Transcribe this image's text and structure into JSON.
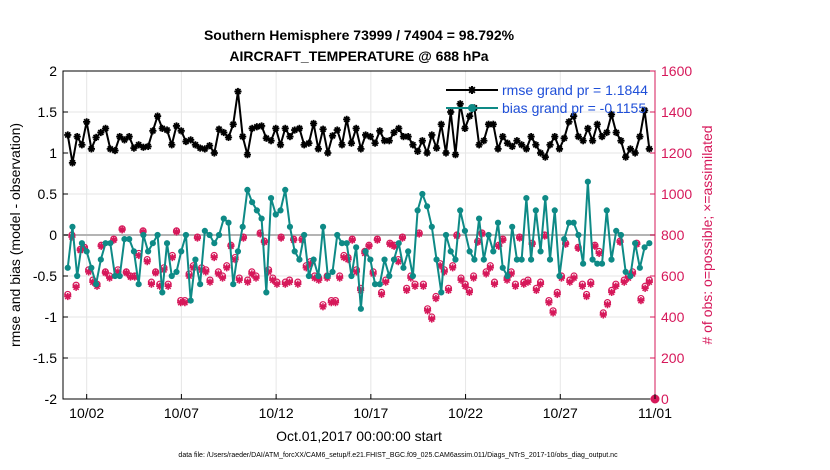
{
  "chart_data": {
    "type": "line",
    "title_line1": "Southern Hemisphere 73999 / 74904 = 98.792%",
    "title_line2": "AIRCRAFT_TEMPERATURE @ 688 hPa",
    "xlabel": "Oct.01,2017 00:00:00 start",
    "ylabel_left": "rmse and bias (model - observation)",
    "ylabel_right": "# of obs: o=possible; ×=assimilated",
    "footer": "data file: /Users/raeder/DAI/ATM_forcXX/CAM6_setup/f.e21.FHIST_BGC.f09_025.CAM6assim.011/Diags_NTrS_2017-10/obs_diag_output.nc",
    "x_ticks": [
      {
        "day": 2,
        "label": "10/02"
      },
      {
        "day": 7,
        "label": "10/07"
      },
      {
        "day": 12,
        "label": "10/12"
      },
      {
        "day": 17,
        "label": "10/17"
      },
      {
        "day": 22,
        "label": "10/22"
      },
      {
        "day": 27,
        "label": "10/27"
      },
      {
        "day": 32,
        "label": "11/01"
      }
    ],
    "xlim_days": [
      0.75,
      32.0
    ],
    "ylim_left": [
      -2,
      2
    ],
    "yticks_left": [
      "2",
      "1.5",
      "1",
      "0.5",
      "0",
      "-0.5",
      "-1",
      "-1.5",
      "-2"
    ],
    "ylim_right": [
      0,
      1600
    ],
    "yticks_right": [
      "1600",
      "1400",
      "1200",
      "1000",
      "800",
      "600",
      "400",
      "200",
      "0"
    ],
    "grid": true,
    "legend_position": "top-right",
    "colors": {
      "rmse": "#000000",
      "bias": "#0e8a86",
      "obs": "#d6185a",
      "zero": "#b4b4b4",
      "legend_text": "#1f4fd8"
    },
    "series": [
      {
        "name": "rmse grand pr = 1.1844",
        "axis": "left",
        "values": [
          1.22,
          0.88,
          1.2,
          1.1,
          1.38,
          1.05,
          1.19,
          1.25,
          1.3,
          1.05,
          1.03,
          1.2,
          1.16,
          1.2,
          1.06,
          1.1,
          1.07,
          1.08,
          1.27,
          1.45,
          1.3,
          1.28,
          1.1,
          1.33,
          1.27,
          1.14,
          1.16,
          1.1,
          1.06,
          1.05,
          1.09,
          1.0,
          1.29,
          1.25,
          1.19,
          1.35,
          1.75,
          1.2,
          0.98,
          1.3,
          1.32,
          1.33,
          1.18,
          1.15,
          1.3,
          1.1,
          1.3,
          1.2,
          1.28,
          1.3,
          1.1,
          1.12,
          1.36,
          1.05,
          1.29,
          1.0,
          1.21,
          1.28,
          1.1,
          1.41,
          1.12,
          1.3,
          1.05,
          1.22,
          1.2,
          1.12,
          1.27,
          1.15,
          1.15,
          1.25,
          1.3,
          1.2,
          1.2,
          1.1,
          1.02,
          1.15,
          1.0,
          1.22,
          1.06,
          1.35,
          1.0,
          1.5,
          0.98,
          1.6,
          1.3,
          1.45,
          1.55,
          1.1,
          1.15,
          1.35,
          1.35,
          1.05,
          1.2,
          1.12,
          1.08,
          1.15,
          1.1,
          1.05,
          1.2,
          1.1,
          1.0,
          0.95,
          1.1,
          1.2,
          1.05,
          1.18,
          1.38,
          1.45,
          1.2,
          1.15,
          1.3,
          1.15,
          1.35,
          1.2,
          1.25,
          1.47,
          1.25,
          1.15,
          0.95,
          1.05,
          1.0,
          1.2,
          1.52,
          1.05
        ]
      },
      {
        "name": "bias grand pr = -0.1155",
        "axis": "left",
        "values": [
          -0.4,
          0.1,
          -0.5,
          -0.1,
          -0.2,
          -0.4,
          -0.6,
          -0.3,
          -0.1,
          -0.1,
          -0.5,
          -0.5,
          -0.05,
          -0.05,
          -0.2,
          -0.6,
          0.0,
          -0.2,
          -0.1,
          0.0,
          -0.7,
          -0.1,
          -0.5,
          -0.45,
          -0.2,
          0.0,
          -0.8,
          -0.3,
          -0.6,
          0.05,
          0.0,
          -0.1,
          0.0,
          0.2,
          0.15,
          -0.6,
          -0.2,
          0.1,
          0.55,
          0.4,
          0.3,
          0.2,
          -0.7,
          0.45,
          0.25,
          0.3,
          0.55,
          0.1,
          -0.2,
          -0.3,
          0.0,
          -0.5,
          -0.3,
          -0.5,
          0.1,
          -0.5,
          -0.45,
          0.0,
          -0.1,
          -0.1,
          -0.5,
          -0.15,
          -0.9,
          -0.2,
          -0.3,
          -0.6,
          -0.6,
          -0.3,
          -0.5,
          -0.3,
          -0.1,
          -0.4,
          -0.2,
          -0.5,
          0.3,
          0.5,
          0.35,
          0.1,
          -0.3,
          -0.7,
          0.0,
          -0.2,
          -0.3,
          0.3,
          0.05,
          -0.2,
          -0.3,
          0.2,
          -0.3,
          0.0,
          -0.2,
          0.15,
          -0.4,
          -0.5,
          0.1,
          -0.3,
          -0.3,
          0.45,
          -0.3,
          0.3,
          -0.2,
          0.45,
          -0.3,
          0.3,
          -0.5,
          -0.05,
          0.15,
          0.15,
          0.0,
          -0.35,
          0.65,
          -0.3,
          -0.35,
          -0.35,
          0.3,
          -0.3,
          0.05,
          0.0,
          -0.45,
          -0.5,
          -0.1,
          -0.4,
          -0.15,
          -0.1
        ]
      },
      {
        "name": "obs possible",
        "axis": "right",
        "values": [
          510,
          800,
          555,
          730,
          740,
          630,
          580,
          560,
          750,
          620,
          600,
          780,
          630,
          830,
          620,
          600,
          600,
          710,
          820,
          680,
          570,
          620,
          560,
          640,
          560,
          700,
          820,
          480,
          480,
          610,
          650,
          790,
          640,
          630,
          580,
          700,
          620,
          600,
          650,
          750,
          690,
          590,
          790,
          580,
          620,
          600,
          810,
          770,
          630,
          590,
          570,
          790,
          570,
          580,
          780,
          570,
          780,
          650,
          670,
          600,
          590,
          460,
          600,
          480,
          480,
          600,
          700,
          690,
          780,
          630,
          540,
          720,
          750,
          620,
          780,
          520,
          580,
          760,
          750,
          680,
          790,
          540,
          600,
          560,
          810,
          560,
          440,
          400,
          500,
          660,
          630,
          540,
          650,
          800,
          590,
          560,
          530,
          600,
          770,
          810,
          620,
          650,
          570,
          750,
          780,
          590,
          620,
          560,
          790,
          570,
          580,
          760,
          540,
          570,
          800,
          480,
          430,
          520,
          600,
          760,
          580,
          600,
          740,
          560,
          510,
          570,
          750,
          720,
          420,
          470,
          530,
          560,
          770,
          580,
          600,
          620,
          760,
          490,
          550,
          580
        ]
      },
      {
        "name": "obs assimilated",
        "axis": "right",
        "values": [
          500,
          790,
          545,
          725,
          735,
          620,
          570,
          550,
          745,
          615,
          590,
          775,
          620,
          825,
          615,
          595,
          595,
          700,
          815,
          670,
          560,
          615,
          550,
          630,
          550,
          690,
          815,
          470,
          470,
          600,
          640,
          785,
          630,
          620,
          570,
          690,
          610,
          590,
          640,
          745,
          680,
          580,
          785,
          570,
          610,
          590,
          805,
          765,
          620,
          580,
          560,
          785,
          560,
          570,
          775,
          560,
          775,
          640,
          660,
          590,
          580,
          450,
          590,
          470,
          470,
          590,
          690,
          680,
          775,
          620,
          530,
          710,
          745,
          610,
          775,
          510,
          570,
          755,
          745,
          670,
          785,
          530,
          590,
          550,
          805,
          550,
          430,
          390,
          490,
          650,
          620,
          530,
          640,
          795,
          580,
          550,
          520,
          590,
          765,
          805,
          610,
          640,
          560,
          745,
          775,
          580,
          610,
          550,
          785,
          560,
          570,
          755,
          530,
          560,
          795,
          470,
          420,
          510,
          590,
          755,
          570,
          590,
          735,
          550,
          500,
          560,
          745,
          710,
          410,
          460,
          520,
          550,
          765,
          570,
          590,
          610,
          755,
          480,
          540,
          570
        ]
      }
    ],
    "extra_points": [
      {
        "day": 32.0,
        "value": 0,
        "axis": "right",
        "marker": "o"
      }
    ]
  }
}
